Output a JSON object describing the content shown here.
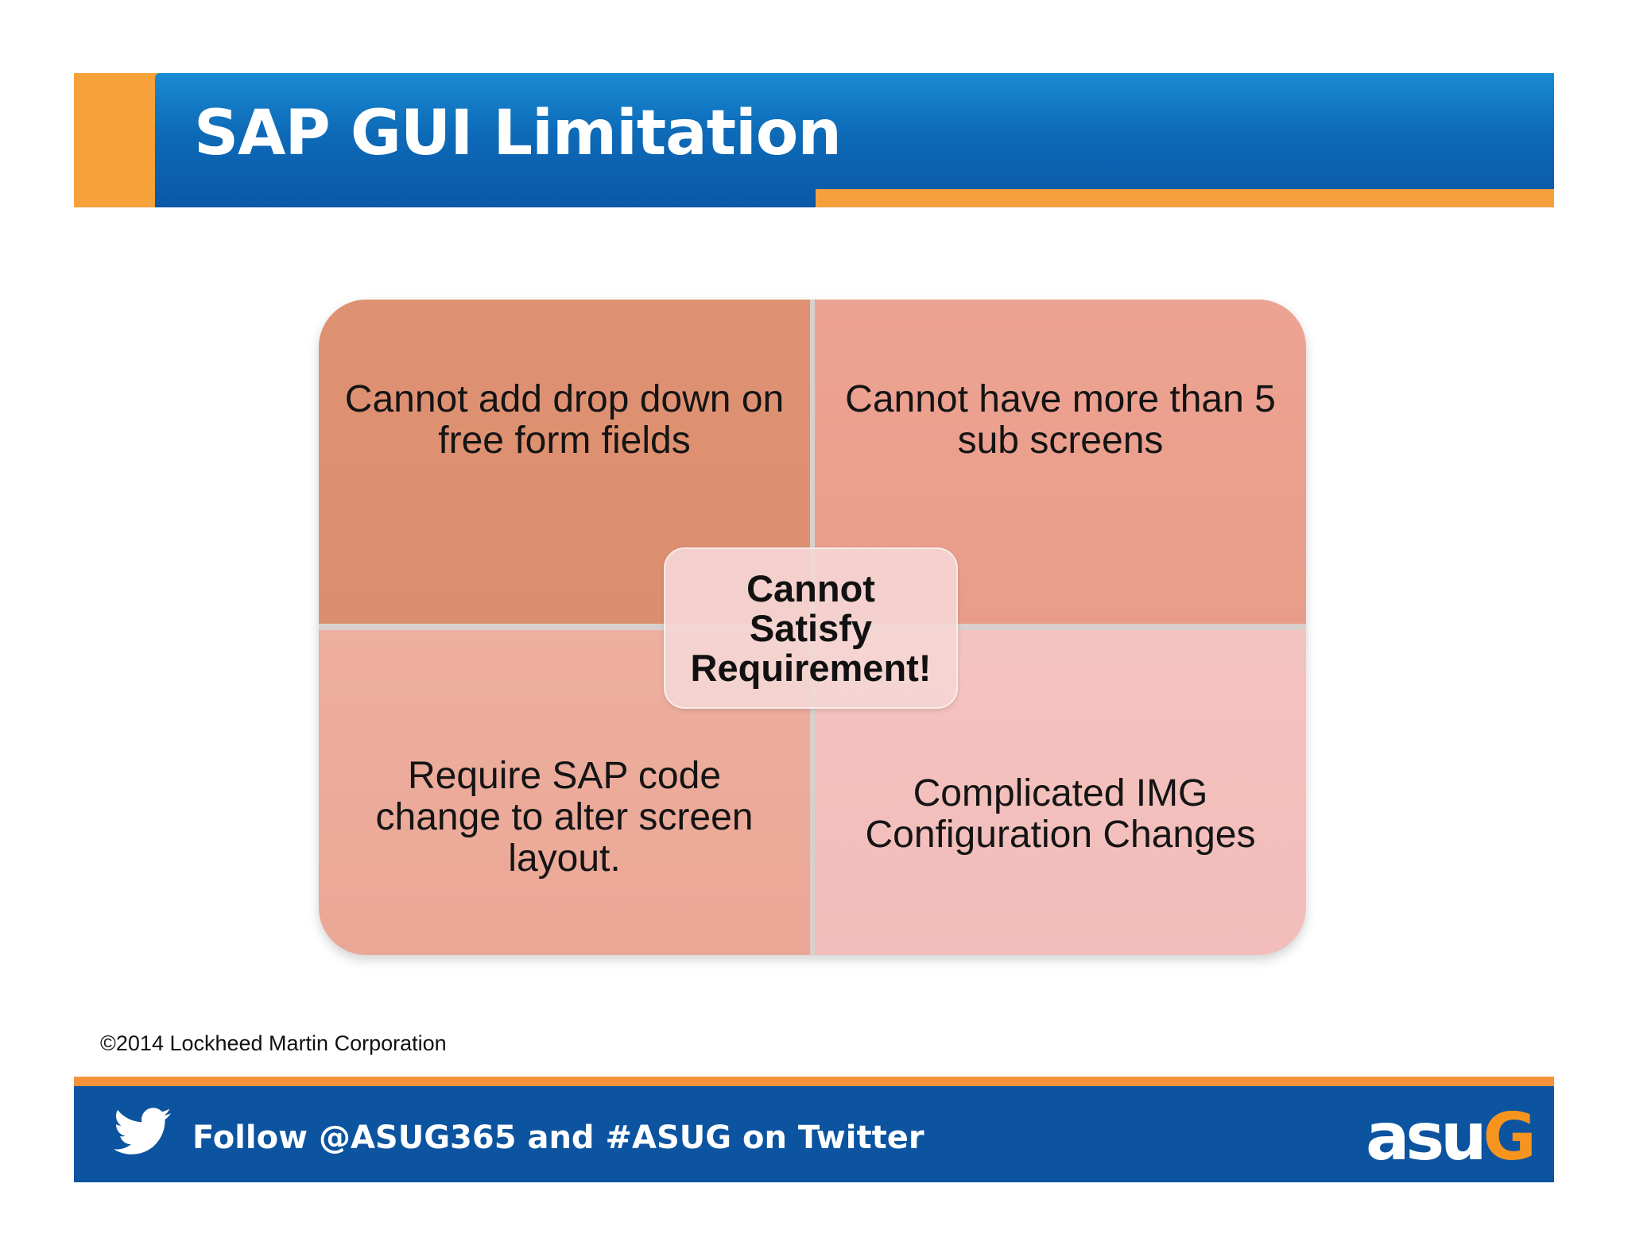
{
  "header": {
    "title": "SAP GUI Limitation"
  },
  "matrix": {
    "top_left": [
      "Cannot add drop down on",
      "free form fields"
    ],
    "top_right": [
      "Cannot have more than 5",
      "sub screens"
    ],
    "bottom_left": [
      "Require SAP code",
      "change to alter screen",
      "layout."
    ],
    "bottom_right": [
      "Complicated IMG",
      "Configuration Changes"
    ],
    "center": [
      "Cannot",
      "Satisfy",
      "Requirement!"
    ]
  },
  "copyright": "©2014 Lockheed Martin Corporation",
  "footer": {
    "text": "Follow @ASUG365 and #ASUG on Twitter",
    "logo": {
      "main": "asu",
      "accent": "G"
    }
  },
  "colors": {
    "header_blue": "#0d6ab7",
    "header_orange": "#f7a13a",
    "footer_blue": "#0c54a0",
    "footer_orange": "#f5923a",
    "quad_top_left": "#dc8f70",
    "quad_top_right": "#e99d89",
    "quad_bottom_left": "#eba796",
    "quad_bottom_right": "#f2bdba",
    "logo_accent": "#f7941d"
  }
}
